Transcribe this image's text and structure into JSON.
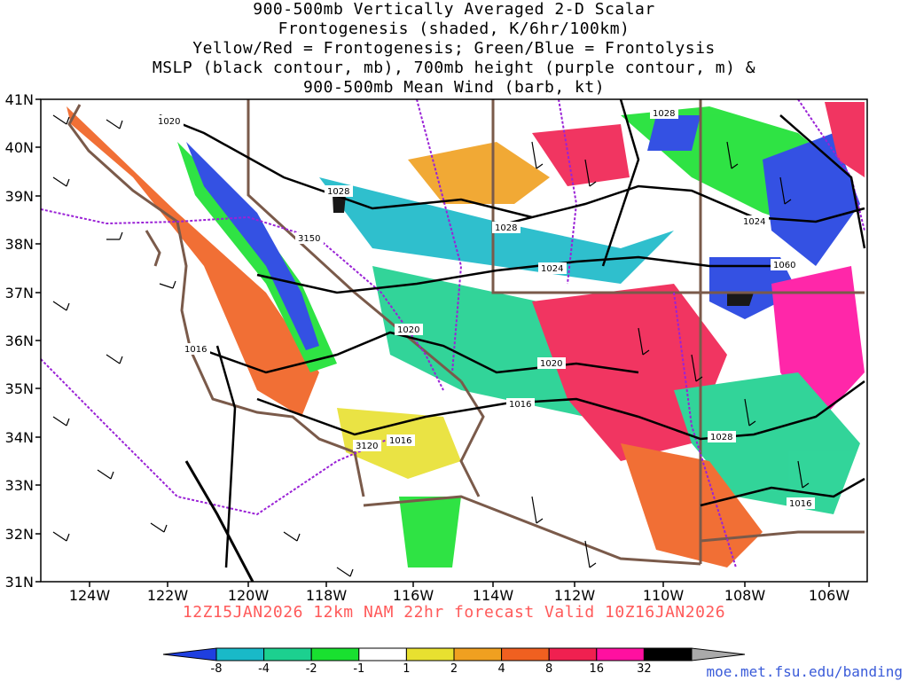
{
  "title_lines": [
    "900-500mb Vertically Averaged 2-D Scalar",
    "Frontogenesis (shaded, K/6hr/100km)",
    "Yellow/Red = Frontogenesis;  Green/Blue = Frontolysis",
    "MSLP (black contour, mb), 700mb height (purple contour, m) &",
    "900-500mb Mean Wind (barb, kt)"
  ],
  "lat_labels": [
    "41N",
    "40N",
    "39N",
    "38N",
    "37N",
    "36N",
    "35N",
    "34N",
    "33N",
    "32N",
    "31N"
  ],
  "lon_labels": [
    "124W",
    "122W",
    "120W",
    "118W",
    "116W",
    "114W",
    "112W",
    "110W",
    "108W",
    "106W"
  ],
  "contour_labels": [
    "1020",
    "1028",
    "1028",
    "1028",
    "1024",
    "1024",
    "1060",
    "3150",
    "1020",
    "1016",
    "1020",
    "1016",
    "3120",
    "1016",
    "1028",
    "1016"
  ],
  "colorbar": {
    "ticks": [
      "-8",
      "-4",
      "-2",
      "-1",
      "1",
      "2",
      "4",
      "8",
      "16",
      "32"
    ],
    "colors": [
      "#1f3fe0",
      "#19b9c8",
      "#1cd08f",
      "#19e030",
      "#ffffff",
      "#e8e030",
      "#f0a020",
      "#f06020",
      "#f02050",
      "#ff10a0",
      "#000000",
      "#aaaaaa"
    ]
  },
  "footer": "12Z15JAN2026 12km NAM 22hr forecast Valid 10Z16JAN2026",
  "credit": "moe.met.fsu.edu/banding"
}
